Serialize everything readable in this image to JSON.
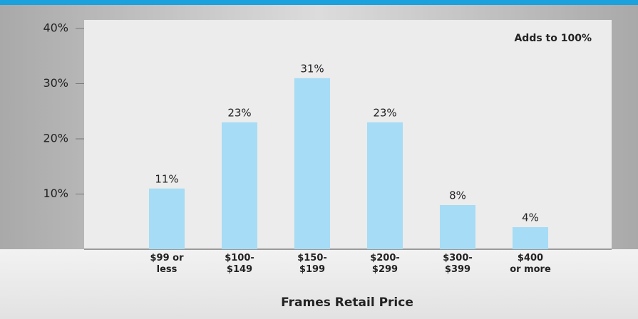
{
  "chart_data": {
    "type": "bar",
    "annotation": "Adds to 100%",
    "xlabel": "Frames Retail Price",
    "categories": [
      [
        "$99 or",
        "less"
      ],
      [
        "$100-",
        "$149"
      ],
      [
        "$150-",
        "$199"
      ],
      [
        "$200-",
        "$299"
      ],
      [
        "$300-",
        "$399"
      ],
      [
        "$400",
        "or more"
      ]
    ],
    "values": [
      11,
      23,
      31,
      23,
      8,
      4
    ],
    "value_labels": [
      "11%",
      "23%",
      "31%",
      "23%",
      "8%",
      "4%"
    ],
    "color": "#a6dcf5",
    "ylim": [
      0,
      40
    ],
    "yticks": [
      {
        "value": 10,
        "label": "10%"
      },
      {
        "value": 20,
        "label": "20%"
      },
      {
        "value": 30,
        "label": "30%"
      },
      {
        "value": 40,
        "label": "40%"
      }
    ]
  }
}
